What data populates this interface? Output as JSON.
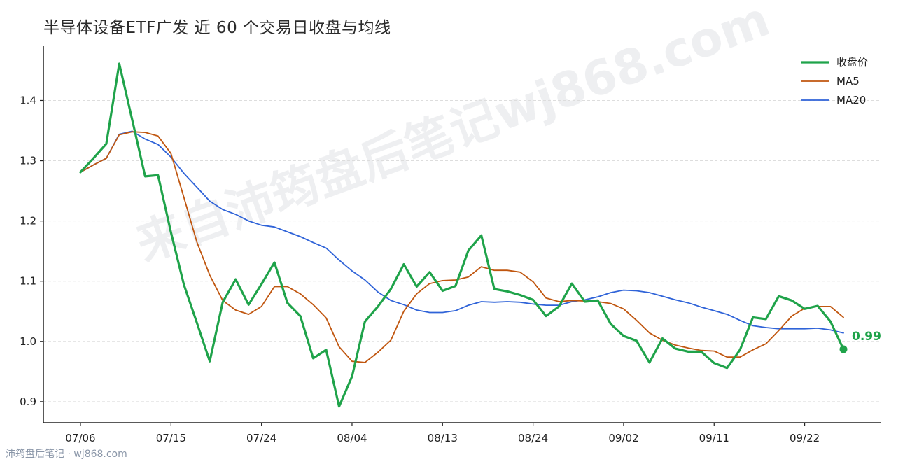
{
  "title": "半导体设备ETF广发 近 60 个交易日收盘与均线",
  "watermark": "来自沛筠盘后笔记wj868.com",
  "footer": "沛筠盘后笔记 · wj868.com",
  "colors": {
    "close": "#1fa34a",
    "ma5": "#c0560f",
    "ma20": "#2f63d8",
    "grid": "#dddddd",
    "axis": "#222222"
  },
  "chart_data": {
    "type": "line",
    "title": "半导体设备ETF广发 近 60 个交易日收盘与均线",
    "xlabel": "",
    "ylabel": "",
    "ylim": [
      0.865,
      1.49
    ],
    "yticks": [
      0.9,
      1.0,
      1.1,
      1.2,
      1.3,
      1.4
    ],
    "ytick_labels": [
      "0.9",
      "1.0",
      "1.1",
      "1.2",
      "1.3",
      "1.4"
    ],
    "xticks": [
      0,
      7,
      14,
      21,
      28,
      35,
      42,
      49,
      56
    ],
    "xtick_labels": [
      "07/06",
      "07/15",
      "07/24",
      "08/04",
      "08/13",
      "08/24",
      "09/02",
      "09/11",
      "09/22"
    ],
    "grid": "y-dashed",
    "legend_position": "top-right",
    "last_value_label": "0.99",
    "series": [
      {
        "name": "收盘价",
        "color": "#1fa34a",
        "values": [
          1.281,
          1.304,
          1.328,
          1.461,
          1.368,
          1.274,
          1.276,
          1.181,
          1.094,
          1.031,
          0.967,
          1.065,
          1.103,
          1.061,
          1.095,
          1.131,
          1.064,
          1.042,
          0.972,
          0.986,
          0.892,
          0.942,
          1.033,
          1.058,
          1.087,
          1.128,
          1.091,
          1.115,
          1.084,
          1.092,
          1.151,
          1.176,
          1.087,
          1.083,
          1.077,
          1.069,
          1.042,
          1.058,
          1.096,
          1.066,
          1.068,
          1.029,
          1.009,
          1.001,
          0.965,
          1.005,
          0.988,
          0.983,
          0.983,
          0.964,
          0.956,
          0.986,
          1.04,
          1.037,
          1.075,
          1.068,
          1.054,
          1.059,
          1.033,
          0.987
        ]
      },
      {
        "name": "MA5",
        "color": "#c0560f",
        "values": [
          1.281,
          1.293,
          1.304,
          1.343,
          1.348,
          1.347,
          1.341,
          1.312,
          1.239,
          1.165,
          1.11,
          1.068,
          1.052,
          1.045,
          1.058,
          1.091,
          1.091,
          1.079,
          1.061,
          1.039,
          0.991,
          0.967,
          0.965,
          0.982,
          1.002,
          1.05,
          1.079,
          1.096,
          1.101,
          1.102,
          1.107,
          1.124,
          1.118,
          1.118,
          1.115,
          1.099,
          1.072,
          1.066,
          1.068,
          1.067,
          1.066,
          1.063,
          1.054,
          1.035,
          1.014,
          1.002,
          0.994,
          0.989,
          0.985,
          0.984,
          0.974,
          0.974,
          0.986,
          0.996,
          1.018,
          1.042,
          1.055,
          1.058,
          1.058,
          1.04
        ]
      },
      {
        "name": "MA20",
        "color": "#2f63d8",
        "values": [
          1.281,
          1.293,
          1.304,
          1.344,
          1.349,
          1.336,
          1.327,
          1.306,
          1.279,
          1.256,
          1.233,
          1.219,
          1.211,
          1.2,
          1.193,
          1.19,
          1.182,
          1.174,
          1.164,
          1.155,
          1.135,
          1.117,
          1.102,
          1.082,
          1.068,
          1.061,
          1.052,
          1.048,
          1.048,
          1.051,
          1.06,
          1.066,
          1.065,
          1.066,
          1.065,
          1.062,
          1.06,
          1.06,
          1.066,
          1.069,
          1.074,
          1.081,
          1.085,
          1.084,
          1.081,
          1.075,
          1.069,
          1.064,
          1.057,
          1.051,
          1.045,
          1.035,
          1.026,
          1.023,
          1.021,
          1.021,
          1.021,
          1.022,
          1.019,
          1.014
        ]
      }
    ]
  }
}
